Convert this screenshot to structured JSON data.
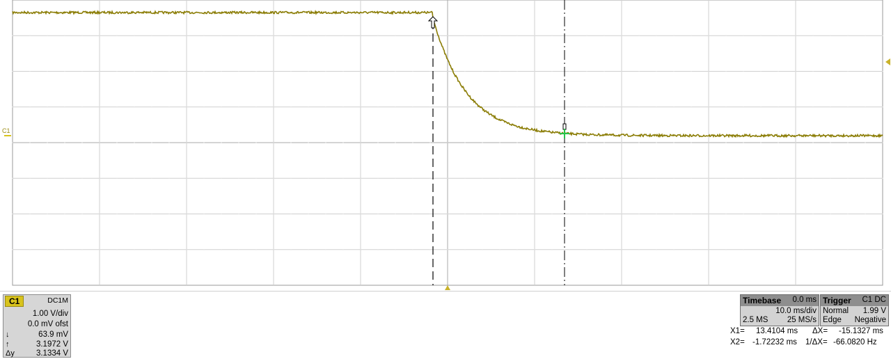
{
  "channel": {
    "marker": "C1"
  },
  "colors": {
    "trace": "#8b7d06",
    "accent": "#d8c31c",
    "grid": "#c8c8c8"
  },
  "info_panel": {
    "channel_box": {
      "name": "C1",
      "coupling": "DC1M",
      "vdiv": "1.00 V/div",
      "offset": "0.0 mV ofst",
      "y1_symbol": "↓",
      "y1_value": "63.9 mV",
      "y2_symbol": "↑",
      "y2_value": "3.1972 V",
      "dy_symbol": "Δy",
      "dy_value": "3.1334 V"
    },
    "timebase": {
      "title": "Timebase",
      "delay": "0.0 ms",
      "tdiv": "10.0 ms/div",
      "samples": "2.5 MS",
      "rate": "25 MS/s"
    },
    "trigger": {
      "title": "Trigger",
      "source": "C1 DC",
      "mode": "Normal",
      "level": "1.99 V",
      "type": "Edge",
      "slope": "Negative"
    },
    "measurements": {
      "x1_label": "X1=",
      "x1_value": "13.4104 ms",
      "x2_label": "X2=",
      "x2_value": "-1.72232 ms",
      "dx_label": "ΔX=",
      "dx_value": "-15.1327 ms",
      "inv_dx_label": "1/ΔX=",
      "inv_dx_value": "-66.0820 Hz"
    }
  }
}
